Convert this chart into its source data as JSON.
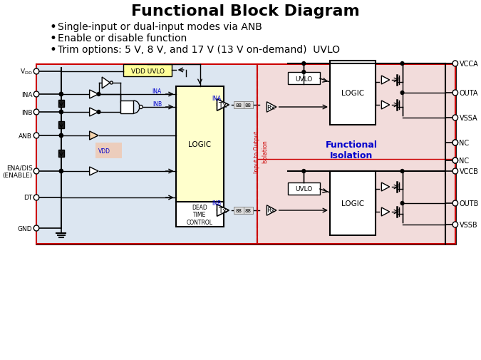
{
  "title": "Functional Block Diagram",
  "title_fontsize": 16,
  "title_fontweight": "bold",
  "bullet_points": [
    "Single-input or dual-input modes via ANB",
    "Enable or disable function",
    "Trim options: 5 V, 8 V, and 17 V (13 V on-demand)  UVLO"
  ],
  "bullet_fontsize": 10,
  "bg_color": "#ffffff",
  "left_box_color": "#dce6f1",
  "left_box_border": "#cc0000",
  "right_box_color": "#f2dcdb",
  "right_box_border": "#cc0000",
  "logic_box_color": "#ffffcc",
  "logic_box_border": "#000000",
  "uvlo_box_color": "#ffffff",
  "dead_time_box_color": "#ffffff",
  "dead_time_box_border": "#000000",
  "vdd_uvlo_box_color": "#ffff99",
  "vdd_uvlo_border": "#000000",
  "isolation_text_color": "#0000cc",
  "dashed_line_color": "#cc0000",
  "label_color_blue": "#0000cc",
  "line_color": "#000000",
  "figsize": [
    6.75,
    5.06
  ],
  "dpi": 100
}
